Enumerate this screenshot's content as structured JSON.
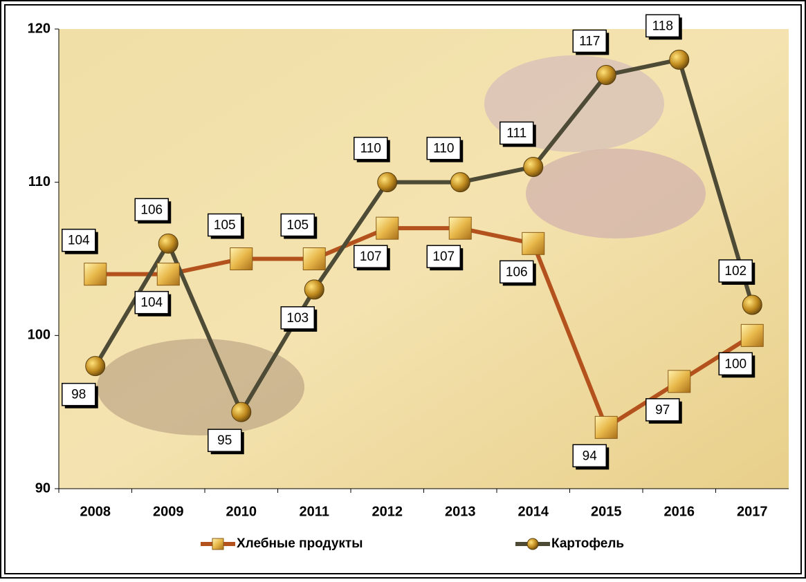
{
  "chart_data": {
    "type": "line",
    "categories": [
      "2008",
      "2009",
      "2010",
      "2011",
      "2012",
      "2013",
      "2014",
      "2015",
      "2016",
      "2017"
    ],
    "series": [
      {
        "name": "Хлебные продукты",
        "color": "#b3521c",
        "values": [
          104,
          104,
          105,
          105,
          107,
          107,
          106,
          94,
          97,
          100
        ]
      },
      {
        "name": "Картофель",
        "color": "#4d4a36",
        "values": [
          98,
          106,
          95,
          103,
          110,
          110,
          111,
          117,
          118,
          102
        ]
      }
    ],
    "ylim": [
      90,
      120
    ],
    "yticks": [
      90,
      100,
      110,
      120
    ],
    "legend": "bottom"
  }
}
